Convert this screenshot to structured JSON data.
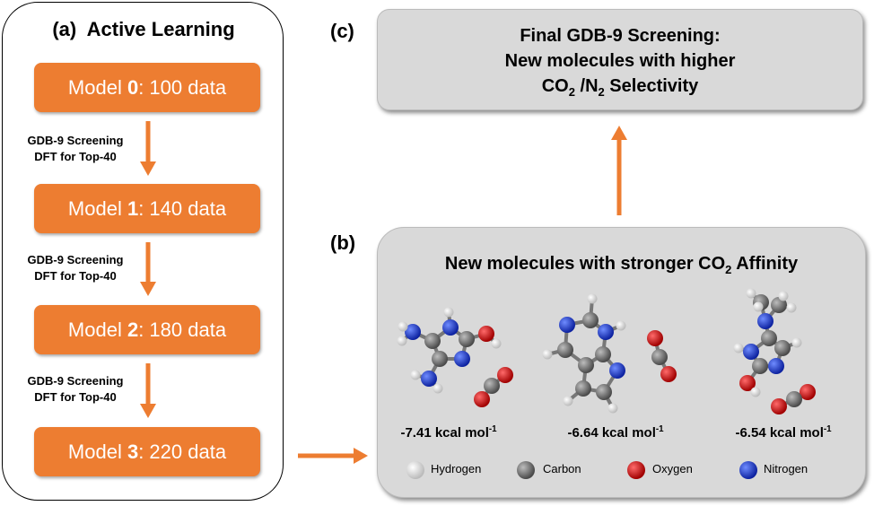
{
  "panel_a": {
    "label": "(a)",
    "title": "Active Learning",
    "models": [
      {
        "prefix": "Model ",
        "num": "0",
        "suffix": ": 100 data"
      },
      {
        "prefix": "Model ",
        "num": "1",
        "suffix": ": 140 data"
      },
      {
        "prefix": "Model ",
        "num": "2",
        "suffix": ": 180 data"
      },
      {
        "prefix": "Model ",
        "num": "3",
        "suffix": ": 220 data"
      }
    ],
    "step_line1": "GDB-9 Screening",
    "step_line2": "DFT for Top-40"
  },
  "panel_b": {
    "label": "(b)",
    "title_pre": "New molecules with stronger CO",
    "title_sub": "2",
    "title_post": " Affinity",
    "energies": [
      {
        "value": "-7.41 kcal mol",
        "exp": "-1"
      },
      {
        "value": "-6.64 kcal mol",
        "exp": "-1"
      },
      {
        "value": "-6.54 kcal mol",
        "exp": "-1"
      }
    ],
    "legend": [
      {
        "label": "Hydrogen",
        "color": "#f2f2f2"
      },
      {
        "label": "Carbon",
        "color": "#808080"
      },
      {
        "label": "Oxygen",
        "color": "#e00000"
      },
      {
        "label": "Nitrogen",
        "color": "#1c3ee0"
      }
    ]
  },
  "panel_c": {
    "label": "(c)",
    "line1": "Final GDB-9 Screening:",
    "line2": "New molecules with higher",
    "line3_a": "CO",
    "line3_sub1": "2",
    "line3_b": " /N",
    "line3_sub2": "2",
    "line3_c": " Selectivity"
  },
  "colors": {
    "accent": "#ED7D31",
    "panel": "#d9d9d9"
  }
}
